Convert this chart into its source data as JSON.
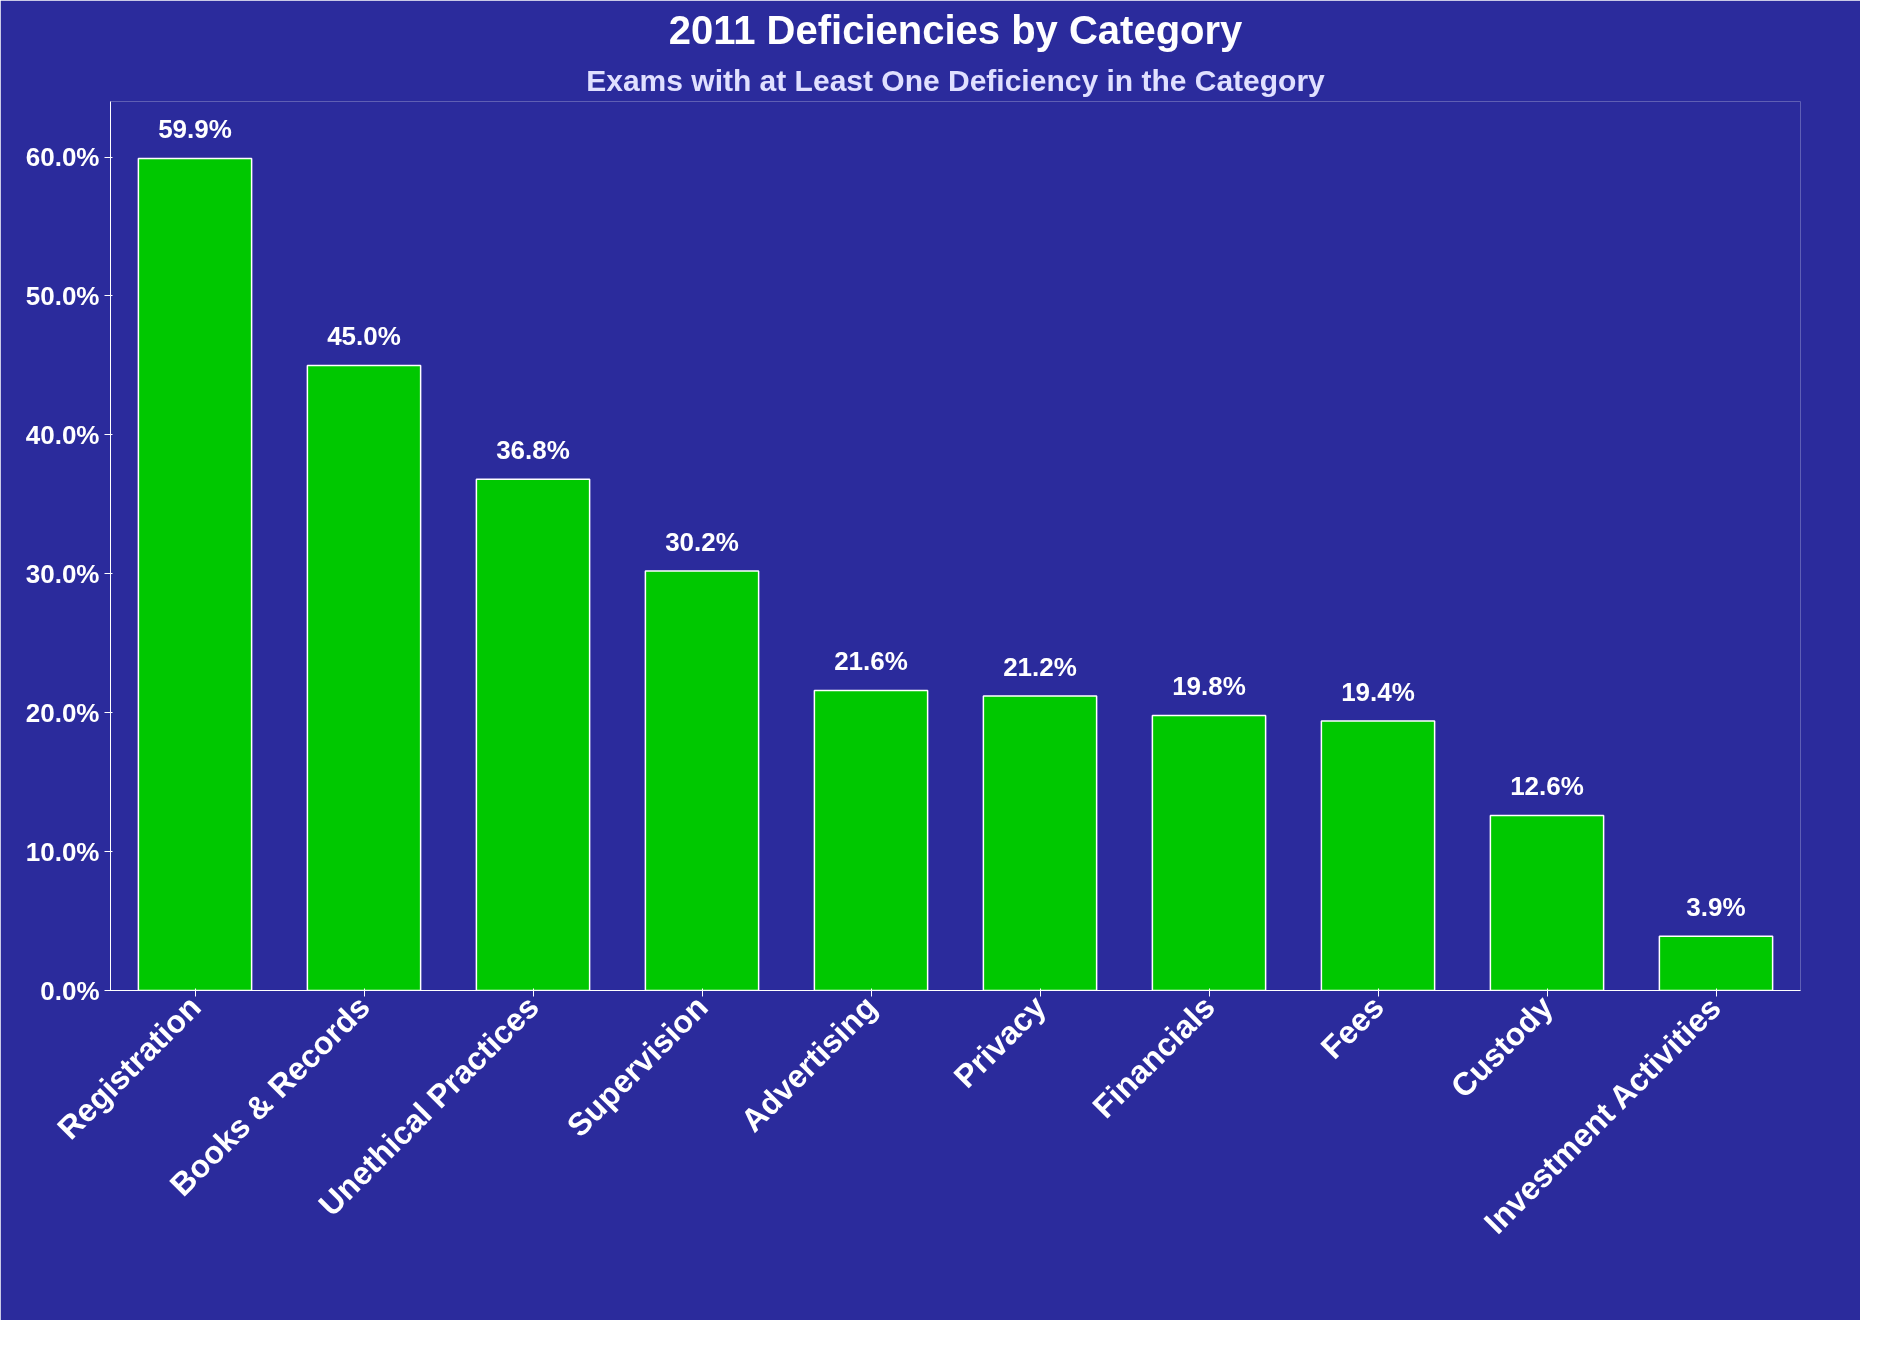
{
  "chart_data": {
    "type": "bar",
    "title": "2011 Deficiencies by Category",
    "subtitle": "Exams with at Least One Deficiency in the Category",
    "categories": [
      "Registration",
      "Books & Records",
      "Unethical Practices",
      "Supervision",
      "Advertising",
      "Privacy",
      "Financials",
      "Fees",
      "Custody",
      "Investment Activities"
    ],
    "values": [
      59.9,
      45.0,
      36.8,
      30.2,
      21.6,
      21.2,
      19.8,
      19.4,
      12.6,
      3.9
    ],
    "value_labels": [
      "59.9%",
      "45.0%",
      "36.8%",
      "30.2%",
      "21.6%",
      "21.2%",
      "19.8%",
      "19.4%",
      "12.6%",
      "3.9%"
    ],
    "color": "#00c800",
    "ylim": [
      0,
      64
    ],
    "yticks": [
      {
        "value": 0,
        "label": "0.0%"
      },
      {
        "value": 10,
        "label": "10.0%"
      },
      {
        "value": 20,
        "label": "20.0%"
      },
      {
        "value": 30,
        "label": "30.0%"
      },
      {
        "value": 40,
        "label": "40.0%"
      },
      {
        "value": 50,
        "label": "50.0%"
      },
      {
        "value": 60,
        "label": "60.0%"
      }
    ],
    "grid": false
  }
}
